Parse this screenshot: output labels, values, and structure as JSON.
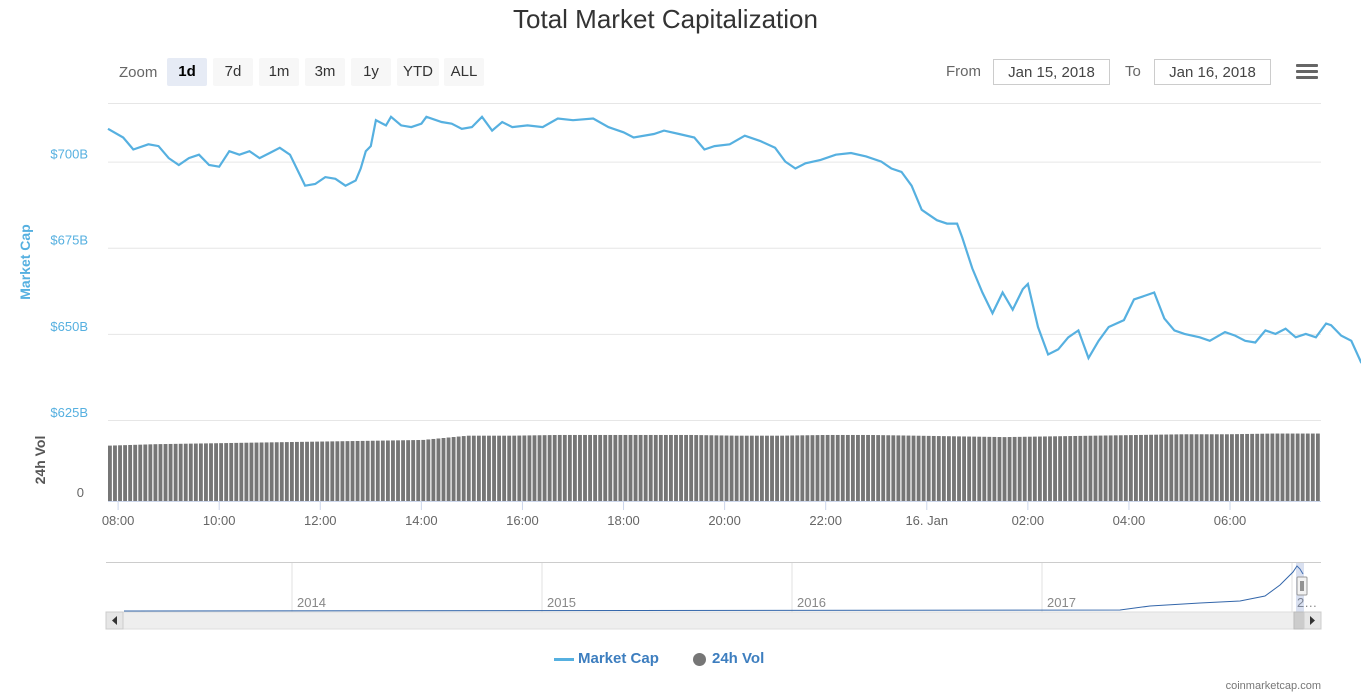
{
  "title": "Total Market Capitalization",
  "zoom": {
    "label": "Zoom",
    "buttons": [
      "1d",
      "7d",
      "1m",
      "3m",
      "1y",
      "YTD",
      "ALL"
    ],
    "active": "1d"
  },
  "range": {
    "from_label": "From",
    "from_value": "Jan 15, 2018",
    "to_label": "To",
    "to_value": "Jan 16, 2018"
  },
  "menu_icon": "hamburger-menu-icon",
  "legend": {
    "market_cap": "Market Cap",
    "vol": "24h Vol"
  },
  "credits": "coinmarketcap.com",
  "colors": {
    "market_cap_line": "#56b0e0",
    "volume_bars": "#767676",
    "axis_label_blue": "#56b0e0",
    "navigator_line": "#3366aa"
  },
  "chart_data": {
    "type": "line",
    "title": "Total Market Capitalization",
    "x_axis": {
      "ticks": [
        "08:00",
        "10:00",
        "12:00",
        "14:00",
        "16:00",
        "18:00",
        "20:00",
        "22:00",
        "16. Jan",
        "02:00",
        "04:00",
        "06:00"
      ],
      "range_hours": [
        7.8,
        31.8
      ]
    },
    "y_axis_market_cap": {
      "label": "Market Cap",
      "ticks": [
        "$700B",
        "$675B",
        "$650B",
        "$625B"
      ],
      "ylim": [
        625,
        717
      ]
    },
    "y_axis_volume": {
      "label": "24h Vol",
      "ticks": [
        "0"
      ]
    },
    "series": [
      {
        "name": "Market Cap",
        "unit": "billion USD",
        "points": [
          [
            7.8,
            709.5
          ],
          [
            8.1,
            707.0
          ],
          [
            8.3,
            703.5
          ],
          [
            8.6,
            705.0
          ],
          [
            8.8,
            704.5
          ],
          [
            9.0,
            701.0
          ],
          [
            9.2,
            699.0
          ],
          [
            9.4,
            701.0
          ],
          [
            9.6,
            702.0
          ],
          [
            9.8,
            699.0
          ],
          [
            10.0,
            698.5
          ],
          [
            10.2,
            703.0
          ],
          [
            10.4,
            702.0
          ],
          [
            10.6,
            703.0
          ],
          [
            10.8,
            701.0
          ],
          [
            11.0,
            702.5
          ],
          [
            11.2,
            704.0
          ],
          [
            11.4,
            702.0
          ],
          [
            11.6,
            696.0
          ],
          [
            11.7,
            693.0
          ],
          [
            11.9,
            693.5
          ],
          [
            12.1,
            695.5
          ],
          [
            12.3,
            695.0
          ],
          [
            12.5,
            693.0
          ],
          [
            12.7,
            694.5
          ],
          [
            12.8,
            698.0
          ],
          [
            12.9,
            703.0
          ],
          [
            13.0,
            704.5
          ],
          [
            13.1,
            712.0
          ],
          [
            13.3,
            710.5
          ],
          [
            13.4,
            713.0
          ],
          [
            13.6,
            710.5
          ],
          [
            13.8,
            710.0
          ],
          [
            14.0,
            711.0
          ],
          [
            14.1,
            713.0
          ],
          [
            14.4,
            711.5
          ],
          [
            14.6,
            711.0
          ],
          [
            14.8,
            709.5
          ],
          [
            15.0,
            710.0
          ],
          [
            15.2,
            713.0
          ],
          [
            15.4,
            709.0
          ],
          [
            15.6,
            711.5
          ],
          [
            15.8,
            710.0
          ],
          [
            16.1,
            710.5
          ],
          [
            16.4,
            710.0
          ],
          [
            16.7,
            712.5
          ],
          [
            17.0,
            712.0
          ],
          [
            17.4,
            712.5
          ],
          [
            17.7,
            710.0
          ],
          [
            18.0,
            708.5
          ],
          [
            18.2,
            707.0
          ],
          [
            18.6,
            708.0
          ],
          [
            18.8,
            709.0
          ],
          [
            19.1,
            708.0
          ],
          [
            19.4,
            707.0
          ],
          [
            19.6,
            703.5
          ],
          [
            19.8,
            704.5
          ],
          [
            20.1,
            705.0
          ],
          [
            20.4,
            707.5
          ],
          [
            20.7,
            706.0
          ],
          [
            21.0,
            704.0
          ],
          [
            21.2,
            700.0
          ],
          [
            21.4,
            698.0
          ],
          [
            21.6,
            699.5
          ],
          [
            21.9,
            700.5
          ],
          [
            22.2,
            702.0
          ],
          [
            22.5,
            702.5
          ],
          [
            22.8,
            701.5
          ],
          [
            23.1,
            700.0
          ],
          [
            23.3,
            698.0
          ],
          [
            23.5,
            697.0
          ],
          [
            23.7,
            693.0
          ],
          [
            23.9,
            686.0
          ],
          [
            24.0,
            685.0
          ],
          [
            24.2,
            683.0
          ],
          [
            24.4,
            682.0
          ],
          [
            24.6,
            682.0
          ],
          [
            24.7,
            678.0
          ],
          [
            24.9,
            669.0
          ],
          [
            25.1,
            662.0
          ],
          [
            25.3,
            656.0
          ],
          [
            25.5,
            662.0
          ],
          [
            25.7,
            657.0
          ],
          [
            25.9,
            663.0
          ],
          [
            26.0,
            664.5
          ],
          [
            26.2,
            652.0
          ],
          [
            26.4,
            644.0
          ],
          [
            26.6,
            645.5
          ],
          [
            26.8,
            649.0
          ],
          [
            27.0,
            651.0
          ],
          [
            27.2,
            643.0
          ],
          [
            27.4,
            648.0
          ],
          [
            27.6,
            652.0
          ],
          [
            27.9,
            654.0
          ],
          [
            28.1,
            660.0
          ],
          [
            28.3,
            661.0
          ],
          [
            28.5,
            662.0
          ],
          [
            28.7,
            654.5
          ],
          [
            28.9,
            651.0
          ],
          [
            29.1,
            650.0
          ],
          [
            29.4,
            649.0
          ],
          [
            29.6,
            648.0
          ],
          [
            29.9,
            650.5
          ],
          [
            30.1,
            649.5
          ],
          [
            30.3,
            648.0
          ],
          [
            30.5,
            647.5
          ],
          [
            30.7,
            651.0
          ],
          [
            30.9,
            650.0
          ],
          [
            31.1,
            651.5
          ],
          [
            31.3,
            649.0
          ],
          [
            31.5,
            650.0
          ],
          [
            31.7,
            649.0
          ],
          [
            31.9,
            653.0
          ],
          [
            32.0,
            652.5
          ],
          [
            32.2,
            649.5
          ],
          [
            32.4,
            648.0
          ],
          [
            32.6,
            641.5
          ]
        ]
      },
      {
        "name": "24h Vol",
        "relative_levels": [
          0.78,
          0.8,
          0.81,
          0.82,
          0.83,
          0.84,
          0.85,
          0.86,
          0.92,
          0.92,
          0.93,
          0.93,
          0.93,
          0.93,
          0.92,
          0.92,
          0.93,
          0.93,
          0.92,
          0.91,
          0.9,
          0.91,
          0.92,
          0.93,
          0.94,
          0.94,
          0.95,
          0.95
        ]
      }
    ],
    "navigator": {
      "years": [
        "2014",
        "2015",
        "2016",
        "2017",
        "2…"
      ]
    },
    "grid": true,
    "legend_position": "bottom-center"
  }
}
